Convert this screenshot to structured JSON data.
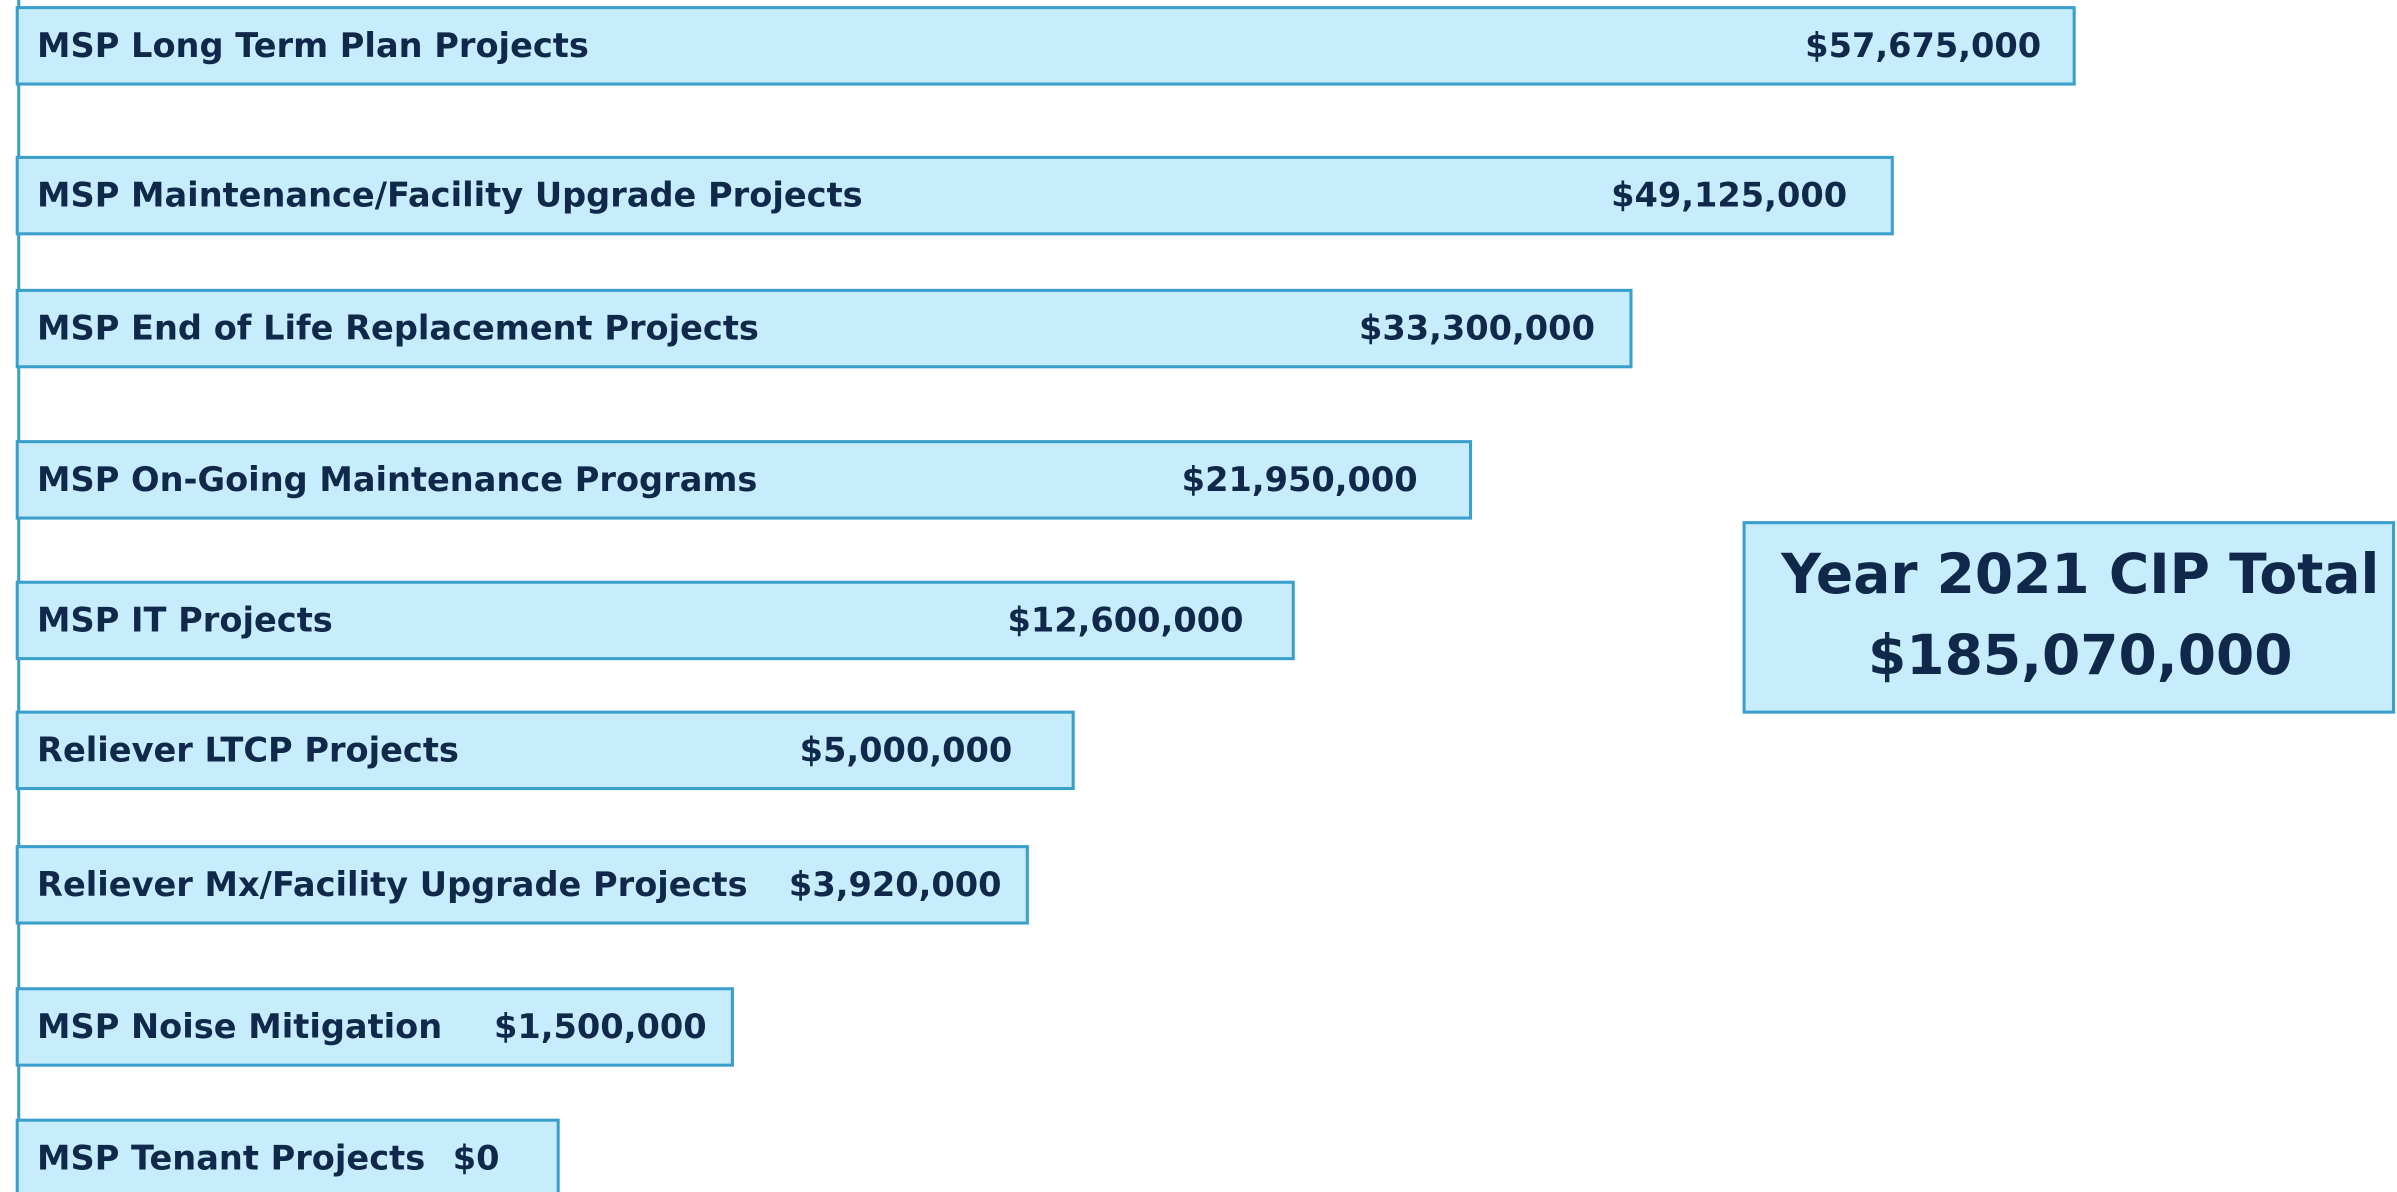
{
  "title": "Year 2021 CIP Total",
  "total": "$185,070,000",
  "items": [
    {
      "label": "MSP Long Term Plan Projects",
      "amount": "$57,675,000"
    },
    {
      "label": "MSP Maintenance/Facility Upgrade Projects",
      "amount": "$49,125,000"
    },
    {
      "label": "MSP End of Life Replacement Projects",
      "amount": "$33,300,000"
    },
    {
      "label": "MSP On-Going Maintenance Programs",
      "amount": "$21,950,000"
    },
    {
      "label": "MSP IT Projects",
      "amount": "$12,600,000"
    },
    {
      "label": "Reliever LTCP Projects",
      "amount": "$5,000,000"
    },
    {
      "label": "Reliever Mx/Facility Upgrade Projects",
      "amount": "$3,920,000"
    },
    {
      "label": "MSP Noise Mitigation",
      "amount": "$1,500,000"
    },
    {
      "label": "MSP Tenant Projects",
      "amount": "$0"
    }
  ]
}
